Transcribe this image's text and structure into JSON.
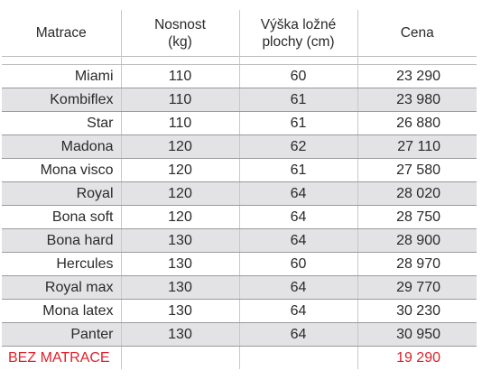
{
  "headers": {
    "matrace": "Matrace",
    "nosnost_l1": "Nosnost",
    "nosnost_l2": "(kg)",
    "vyska_l1": "Výška ložné",
    "vyska_l2": "plochy (cm)",
    "cena": "Cena"
  },
  "rows": [
    {
      "name": "Miami",
      "nosnost": "110",
      "vyska": "60",
      "cena": "23 290"
    },
    {
      "name": "Kombiflex",
      "nosnost": "110",
      "vyska": "61",
      "cena": "23 980"
    },
    {
      "name": "Star",
      "nosnost": "110",
      "vyska": "61",
      "cena": "26 880"
    },
    {
      "name": "Madona",
      "nosnost": "120",
      "vyska": "62",
      "cena": "27 110"
    },
    {
      "name": "Mona visco",
      "nosnost": "120",
      "vyska": "61",
      "cena": "27 580"
    },
    {
      "name": "Royal",
      "nosnost": "120",
      "vyska": "64",
      "cena": "28 020"
    },
    {
      "name": "Bona soft",
      "nosnost": "120",
      "vyska": "64",
      "cena": "28 750"
    },
    {
      "name": "Bona hard",
      "nosnost": "130",
      "vyska": "64",
      "cena": "28 900"
    },
    {
      "name": "Hercules",
      "nosnost": "130",
      "vyska": "60",
      "cena": "28 970"
    },
    {
      "name": "Royal max",
      "nosnost": "130",
      "vyska": "64",
      "cena": "29 770"
    },
    {
      "name": "Mona latex",
      "nosnost": "130",
      "vyska": "64",
      "cena": "30 230"
    },
    {
      "name": "Panter",
      "nosnost": "130",
      "vyska": "64",
      "cena": "30 950"
    }
  ],
  "footer": {
    "name": "BEZ MATRACE",
    "cena": "19 290",
    "color": "#e0212a"
  }
}
